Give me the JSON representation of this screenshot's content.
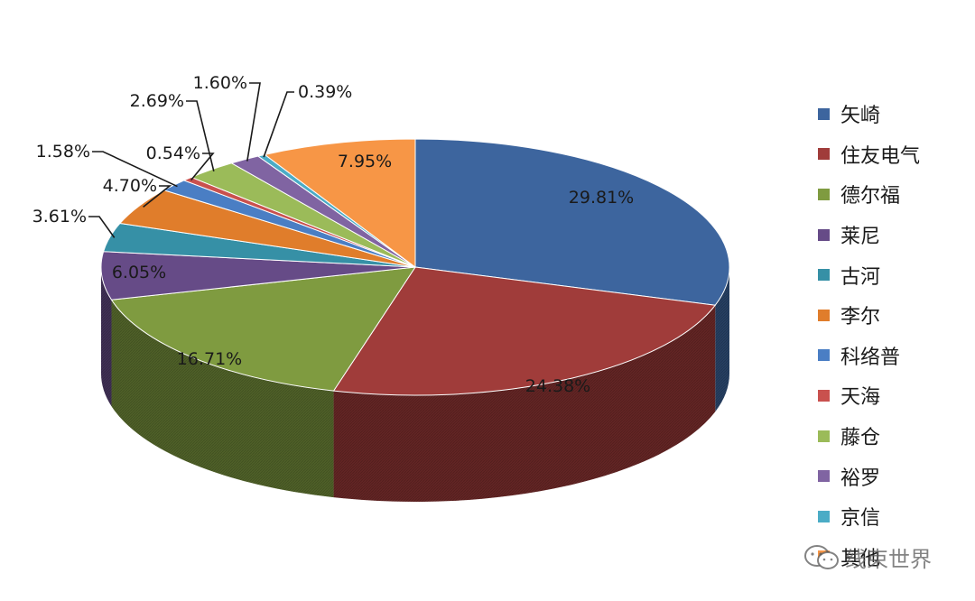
{
  "chart_data": {
    "type": "pie",
    "style": "3d",
    "legend_position": "right",
    "slices": [
      {
        "label": "矢崎",
        "value": 29.81,
        "display": "29.81%",
        "color": "#3d659e"
      },
      {
        "label": "住友电气",
        "value": 24.38,
        "display": "24.38%",
        "color": "#a03c3a"
      },
      {
        "label": "德尔福",
        "value": 16.71,
        "display": "16.71%",
        "color": "#7f9b40"
      },
      {
        "label": "莱尼",
        "value": 6.05,
        "display": "6.05%",
        "color": "#664b87"
      },
      {
        "label": "古河",
        "value": 3.61,
        "display": "3.61%",
        "color": "#3690a6"
      },
      {
        "label": "李尔",
        "value": 4.7,
        "display": "4.70%",
        "color": "#e07d2b"
      },
      {
        "label": "科络普",
        "value": 1.58,
        "display": "1.58%",
        "color": "#4a7ec4"
      },
      {
        "label": "天海",
        "value": 0.54,
        "display": "0.54%",
        "color": "#c9514e"
      },
      {
        "label": "藤仓",
        "value": 2.69,
        "display": "2.69%",
        "color": "#9bbb59"
      },
      {
        "label": "裕罗",
        "value": 1.6,
        "display": "1.60%",
        "color": "#8064a2"
      },
      {
        "label": "京信",
        "value": 0.39,
        "display": "0.39%",
        "color": "#4bacc6"
      },
      {
        "label": "其他",
        "value": 7.95,
        "display": "7.95%",
        "color": "#f79646"
      }
    ]
  },
  "watermark": {
    "text": "线束世界",
    "icon": "wechat-icon"
  }
}
